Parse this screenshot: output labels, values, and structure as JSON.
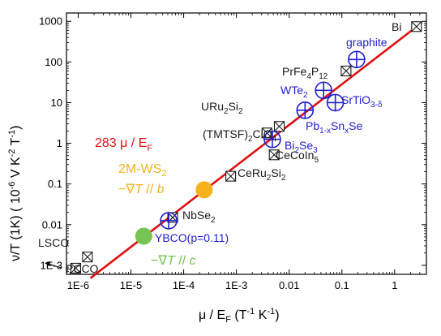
{
  "chart_data": {
    "type": "scatter",
    "xscale": "log",
    "yscale": "log",
    "xlim": [
      6e-07,
      4
    ],
    "ylim": [
      0.0006,
      1600
    ],
    "xlabel": {
      "main": "μ / E",
      "sub": "F",
      "rest": " (T",
      "sup1": "-1",
      "mid": " K",
      "sup2": "-1",
      "close": ")"
    },
    "ylabel": {
      "main": "ν/T (1K) ( 10",
      "sup1": "-6",
      "mid": " V K",
      "sup2": "-2",
      "mid2": " T",
      "sup3": "-1",
      "close": ")"
    },
    "xticks": [
      {
        "v": 1e-06,
        "label": "1E-6"
      },
      {
        "v": 1e-05,
        "label": "1E-5"
      },
      {
        "v": 0.0001,
        "label": "1E-4"
      },
      {
        "v": 0.001,
        "label": "1E-3"
      },
      {
        "v": 0.01,
        "label": "0.01"
      },
      {
        "v": 0.1,
        "label": "0.1"
      },
      {
        "v": 1,
        "label": "1"
      }
    ],
    "yticks": [
      {
        "v": 0.001,
        "label": "1E-3"
      },
      {
        "v": 0.01,
        "label": "0.01"
      },
      {
        "v": 0.1,
        "label": "0.1"
      },
      {
        "v": 1,
        "label": "1"
      },
      {
        "v": 10,
        "label": "10"
      },
      {
        "v": 100,
        "label": "100"
      },
      {
        "v": 1000,
        "label": "1000"
      }
    ],
    "fit_line": {
      "slope": 283,
      "x_range": [
        1.7e-06,
        3.3
      ],
      "color": "#e01010",
      "label": {
        "pre": "283 μ / E",
        "sub": "F"
      }
    },
    "colors": {
      "black": "#1a1a1a",
      "blue": "#2020d0",
      "orange": "#f7b21b",
      "green": "#76c451",
      "red": "#e01010"
    },
    "points": [
      {
        "name": "Bi",
        "x": 2.6,
        "y": 740,
        "marker": "crossed-square",
        "color": "black"
      },
      {
        "name": "PrFe4P12",
        "x": 0.12,
        "y": 60,
        "marker": "crossed-square",
        "color": "black"
      },
      {
        "name": "(TMTSF)2ClO4",
        "x": 0.0065,
        "y": 2.6,
        "marker": "crossed-square",
        "color": "black"
      },
      {
        "name": "URu2Si2",
        "x": 0.0038,
        "y": 1.8,
        "marker": "crossed-square",
        "color": "black"
      },
      {
        "name": "CeCoIn5",
        "x": 0.0052,
        "y": 0.52,
        "marker": "crossed-square",
        "color": "black"
      },
      {
        "name": "CeRu2Si2",
        "x": 0.00078,
        "y": 0.155,
        "marker": "crossed-square",
        "color": "black"
      },
      {
        "name": "NbSe2",
        "x": 6.2e-05,
        "y": 0.015,
        "marker": "crossed-square",
        "color": "black"
      },
      {
        "name": "LSCO",
        "x": 1.5e-06,
        "y": 0.0016,
        "marker": "crossed-square",
        "color": "black"
      },
      {
        "name": "PCCO",
        "x": 9e-07,
        "y": 0.00085,
        "marker": "crossed-square",
        "color": "black"
      },
      {
        "name": "graphite",
        "x": 0.19,
        "y": 115,
        "marker": "crossed-circle",
        "color": "blue"
      },
      {
        "name": "WTe2",
        "x": 0.045,
        "y": 20,
        "marker": "crossed-circle",
        "color": "blue"
      },
      {
        "name": "SrTiO3-δ",
        "x": 0.075,
        "y": 10,
        "marker": "crossed-circle",
        "color": "blue"
      },
      {
        "name": "Pb1-xSnxSe",
        "x": 0.02,
        "y": 6.5,
        "marker": "crossed-circle",
        "color": "blue"
      },
      {
        "name": "Bi2Se3",
        "x": 0.0048,
        "y": 1.25,
        "marker": "crossed-circle",
        "color": "blue"
      },
      {
        "name": "YBCO(p=0.11)",
        "x": 5.2e-05,
        "y": 0.0125,
        "marker": "crossed-circle",
        "color": "blue"
      },
      {
        "name": "2M-WS2",
        "x": 0.000245,
        "y": 0.072,
        "marker": "filled-circle",
        "color": "orange"
      },
      {
        "name": "2M-WS2 c",
        "x": 1.75e-05,
        "y": 0.0052,
        "marker": "filled-circle",
        "color": "green"
      }
    ],
    "labels": [
      {
        "id": "bi",
        "color": "black",
        "parts": [
          {
            "t": "Bi"
          }
        ]
      },
      {
        "id": "prfe",
        "color": "black",
        "parts": [
          {
            "t": "PrFe"
          },
          {
            "t": "4",
            "k": "sub"
          },
          {
            "t": "P"
          },
          {
            "t": "12",
            "k": "sub"
          }
        ]
      },
      {
        "id": "tmtsf",
        "color": "black",
        "parts": [
          {
            "t": "(TMTSF)"
          },
          {
            "t": "2",
            "k": "sub"
          },
          {
            "t": "ClO"
          },
          {
            "t": "4",
            "k": "sub"
          }
        ]
      },
      {
        "id": "uru",
        "color": "black",
        "parts": [
          {
            "t": "URu"
          },
          {
            "t": "2",
            "k": "sub"
          },
          {
            "t": "Si"
          },
          {
            "t": "2",
            "k": "sub"
          }
        ]
      },
      {
        "id": "cecoin",
        "color": "black",
        "parts": [
          {
            "t": "CeCoIn"
          },
          {
            "t": "5",
            "k": "sub"
          }
        ]
      },
      {
        "id": "ceru",
        "color": "black",
        "parts": [
          {
            "t": "CeRu"
          },
          {
            "t": "2",
            "k": "sub"
          },
          {
            "t": "Si"
          },
          {
            "t": "2",
            "k": "sub"
          }
        ]
      },
      {
        "id": "nbse",
        "color": "black",
        "parts": [
          {
            "t": "NbSe"
          },
          {
            "t": "2",
            "k": "sub"
          }
        ]
      },
      {
        "id": "lsco",
        "color": "black",
        "parts": [
          {
            "t": "LSCO"
          }
        ]
      },
      {
        "id": "pcco",
        "color": "black",
        "parts": [
          {
            "t": "PCCO"
          }
        ]
      },
      {
        "id": "graphite",
        "color": "blue",
        "parts": [
          {
            "t": "graphite"
          }
        ]
      },
      {
        "id": "wte",
        "color": "blue",
        "parts": [
          {
            "t": "WTe"
          },
          {
            "t": "2",
            "k": "sub"
          }
        ]
      },
      {
        "id": "srtio",
        "color": "blue",
        "parts": [
          {
            "t": "SrTiO"
          },
          {
            "t": "3-δ",
            "k": "sub"
          }
        ]
      },
      {
        "id": "pbsnse",
        "color": "blue",
        "parts": [
          {
            "t": "Pb"
          },
          {
            "t": "1-x",
            "k": "sub"
          },
          {
            "t": "Sn"
          },
          {
            "t": "x",
            "k": "sub"
          },
          {
            "t": "Se"
          }
        ]
      },
      {
        "id": "bise",
        "color": "blue",
        "parts": [
          {
            "t": "Bi"
          },
          {
            "t": "2",
            "k": "sub"
          },
          {
            "t": "Se"
          },
          {
            "t": "3",
            "k": "sub"
          }
        ]
      },
      {
        "id": "ybco",
        "color": "blue",
        "parts": [
          {
            "t": "YBCO(p=0.11)"
          }
        ]
      },
      {
        "id": "ws2",
        "color": "orange",
        "parts": [
          {
            "t": "2M-WS"
          },
          {
            "t": "2",
            "k": "sub"
          }
        ]
      },
      {
        "id": "ws2b",
        "color": "orange",
        "parts": [
          {
            "t": "−∇"
          },
          {
            "t": "T",
            "k": "it"
          },
          {
            "t": " // "
          },
          {
            "t": "b",
            "k": "it"
          }
        ]
      },
      {
        "id": "ws2c",
        "color": "green",
        "parts": [
          {
            "t": "−∇"
          },
          {
            "t": "T",
            "k": "it"
          },
          {
            "t": " // "
          },
          {
            "t": "c",
            "k": "it"
          }
        ]
      }
    ]
  }
}
